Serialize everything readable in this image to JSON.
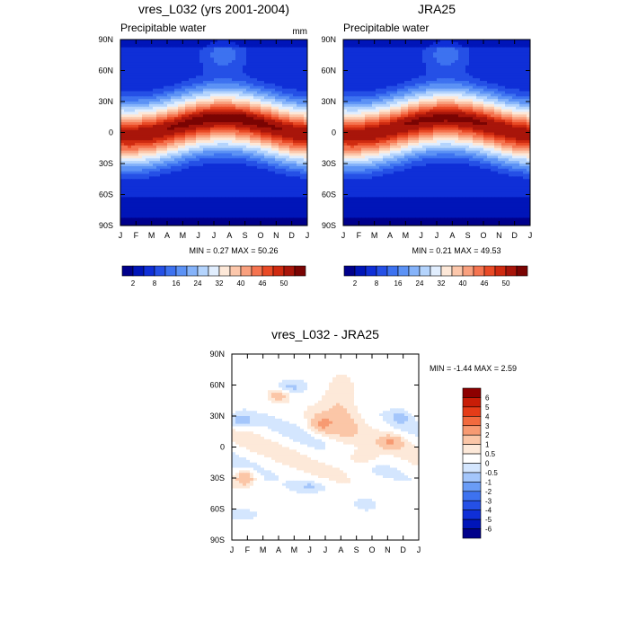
{
  "colors": {
    "precip_scale": [
      "#00008b",
      "#0015b8",
      "#0f2fd7",
      "#2550e6",
      "#3d72f0",
      "#5c92f5",
      "#85b3fa",
      "#b4d4fd",
      "#e1eefe",
      "#fde8d8",
      "#fcc7ab",
      "#f9a07e",
      "#f57450",
      "#e94a26",
      "#cf2a10",
      "#a8150a",
      "#7a0403"
    ],
    "diff_scale": [
      "#00008b",
      "#0015b8",
      "#0f2fd7",
      "#2550e6",
      "#3d72f0",
      "#6a9cf6",
      "#a4c6fb",
      "#d4e6fe",
      "#ffffff",
      "#fde9d9",
      "#fbc6a7",
      "#f79a72",
      "#f26a3e",
      "#e53c18",
      "#c81d07",
      "#8d0000"
    ]
  },
  "chart_data": [
    {
      "type": "heatmap",
      "title": "vres_L032 (yrs 2001-2004)",
      "subtitle": "Precipitable water",
      "units": "mm",
      "x_ticks": [
        "J",
        "F",
        "M",
        "A",
        "M",
        "J",
        "J",
        "A",
        "S",
        "O",
        "N",
        "D",
        "J"
      ],
      "y_ticks": [
        "90N",
        "60N",
        "30N",
        "0",
        "30S",
        "60S",
        "90S"
      ],
      "min_text": "MIN =   0.27 MAX =  50.26",
      "min": 0.27,
      "max": 50.26,
      "colorbar_labels": [
        "2",
        "8",
        "16",
        "24",
        "32",
        "40",
        "46",
        "50"
      ]
    },
    {
      "type": "heatmap",
      "title": "JRA25",
      "subtitle": "Precipitable water",
      "x_ticks": [
        "J",
        "F",
        "M",
        "A",
        "M",
        "J",
        "J",
        "A",
        "S",
        "O",
        "N",
        "D",
        "J"
      ],
      "y_ticks": [
        "90N",
        "60N",
        "30N",
        "0",
        "30S",
        "60S",
        "90S"
      ],
      "min_text": "MIN =   0.21 MAX =  49.53",
      "min": 0.21,
      "max": 49.53,
      "colorbar_labels": [
        "2",
        "8",
        "16",
        "24",
        "32",
        "40",
        "46",
        "50"
      ]
    },
    {
      "type": "heatmap",
      "title": "vres_L032 - JRA25",
      "x_ticks": [
        "J",
        "F",
        "M",
        "A",
        "M",
        "J",
        "J",
        "A",
        "S",
        "O",
        "N",
        "D",
        "J"
      ],
      "y_ticks": [
        "90N",
        "60N",
        "30N",
        "0",
        "30S",
        "60S",
        "90S"
      ],
      "min_text": "MIN =  -1.44 MAX =   2.59",
      "min": -1.44,
      "max": 2.59,
      "colorbar_labels": [
        "6",
        "5",
        "4",
        "3",
        "2",
        "1",
        "0.5",
        "0",
        "-0.5",
        "-1",
        "-2",
        "-3",
        "-4",
        "-5",
        "-6"
      ]
    }
  ]
}
